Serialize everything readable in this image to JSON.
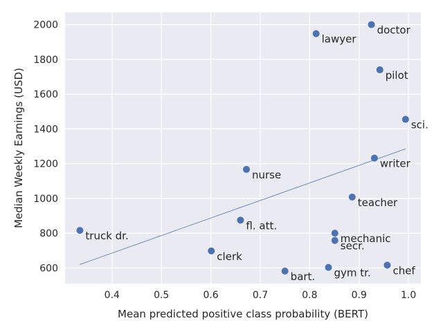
{
  "chart_data": {
    "type": "scatter",
    "xlabel": "Mean predicted positive class probability (BERT)",
    "ylabel": "Median Weekly Earnings (USD)",
    "xlim": [
      0.305,
      1.025
    ],
    "ylim": [
      510,
      2070
    ],
    "xticks": [
      0.4,
      0.5,
      0.6,
      0.7,
      0.8,
      0.9,
      1.0
    ],
    "xtick_labels": [
      "0.4",
      "0.5",
      "0.6",
      "0.7",
      "0.8",
      "0.9",
      "1.0"
    ],
    "yticks": [
      600,
      800,
      1000,
      1200,
      1400,
      1600,
      1800,
      2000
    ],
    "ytick_labels": [
      "600",
      "800",
      "1000",
      "1200",
      "1400",
      "1600",
      "1800",
      "2000"
    ],
    "grid": true,
    "point_color": "#4c72b0",
    "line_color": "#4c72b0",
    "background": "#eaeaf2",
    "points": [
      {
        "label": "doctor",
        "x": 0.925,
        "y": 2000
      },
      {
        "label": "lawyer",
        "x": 0.813,
        "y": 1948
      },
      {
        "label": "pilot",
        "x": 0.942,
        "y": 1740
      },
      {
        "label": "sci.",
        "x": 0.994,
        "y": 1455
      },
      {
        "label": "writer",
        "x": 0.931,
        "y": 1232
      },
      {
        "label": "nurse",
        "x": 0.672,
        "y": 1167
      },
      {
        "label": "teacher",
        "x": 0.886,
        "y": 1008
      },
      {
        "label": "fl. att.",
        "x": 0.66,
        "y": 875
      },
      {
        "label": "truck dr.",
        "x": 0.335,
        "y": 816
      },
      {
        "label": "mechanic",
        "x": 0.851,
        "y": 800
      },
      {
        "label": "secr.",
        "x": 0.851,
        "y": 758
      },
      {
        "label": "clerk",
        "x": 0.601,
        "y": 698
      },
      {
        "label": "chef",
        "x": 0.957,
        "y": 616
      },
      {
        "label": "gym tr.",
        "x": 0.838,
        "y": 603
      },
      {
        "label": "bart.",
        "x": 0.75,
        "y": 582
      }
    ],
    "trendline": {
      "x": [
        0.335,
        0.994
      ],
      "y": [
        620,
        1285
      ]
    }
  }
}
